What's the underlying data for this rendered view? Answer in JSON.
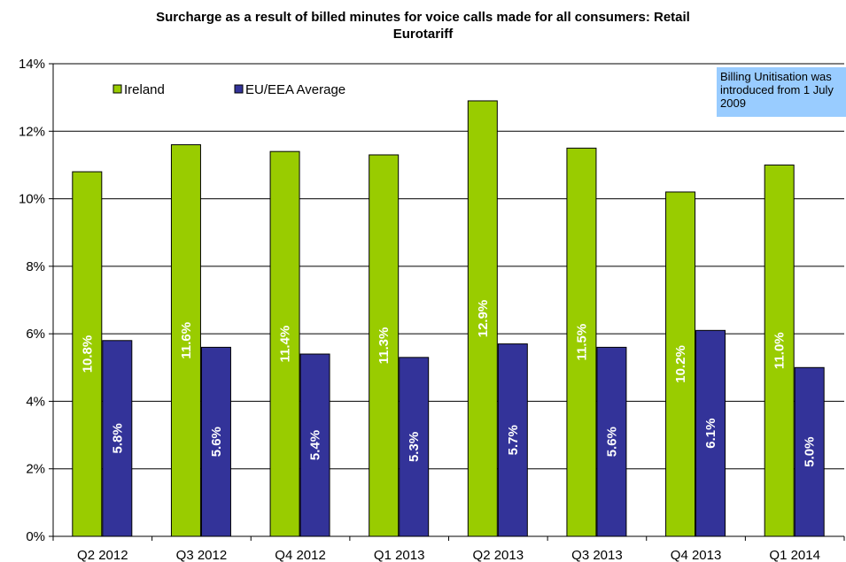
{
  "chart_data": {
    "type": "bar",
    "title": "Surcharge as a result of billed minutes for voice calls made for all consumers: Retail Eurotariff",
    "title_lines": [
      "Surcharge as a result of billed minutes for voice calls made for all consumers: Retail",
      "Eurotariff"
    ],
    "categories": [
      "Q2 2012",
      "Q3 2012",
      "Q4 2012",
      "Q1 2013",
      "Q2 2013",
      "Q3 2013",
      "Q4 2013",
      "Q1 2014"
    ],
    "series": [
      {
        "name": "Ireland",
        "color": "#99cc00",
        "values": [
          10.8,
          11.6,
          11.4,
          11.3,
          12.9,
          11.5,
          10.2,
          11.0
        ],
        "labels": [
          "10.8%",
          "11.6%",
          "11.4%",
          "11.3%",
          "12.9%",
          "11.5%",
          "10.2%",
          "11.0%"
        ]
      },
      {
        "name": "EU/EEA Average",
        "color": "#333399",
        "values": [
          5.8,
          5.6,
          5.4,
          5.3,
          5.7,
          5.6,
          6.1,
          5.0
        ],
        "labels": [
          "5.8%",
          "5.6%",
          "5.4%",
          "5.3%",
          "5.7%",
          "5.6%",
          "6.1%",
          "5.0%"
        ]
      }
    ],
    "ylim": [
      0,
      14
    ],
    "yticks": [
      0,
      2,
      4,
      6,
      8,
      10,
      12,
      14
    ],
    "ytick_labels": [
      "0%",
      "2%",
      "4%",
      "6%",
      "8%",
      "10%",
      "12%",
      "14%"
    ],
    "xlabel": "",
    "ylabel": "",
    "grid": true,
    "legend_position": "top-left",
    "annotation": "Billing Unitisation was\nintroduced from 1 July\n2009",
    "annotation_color": "#99ccff"
  }
}
